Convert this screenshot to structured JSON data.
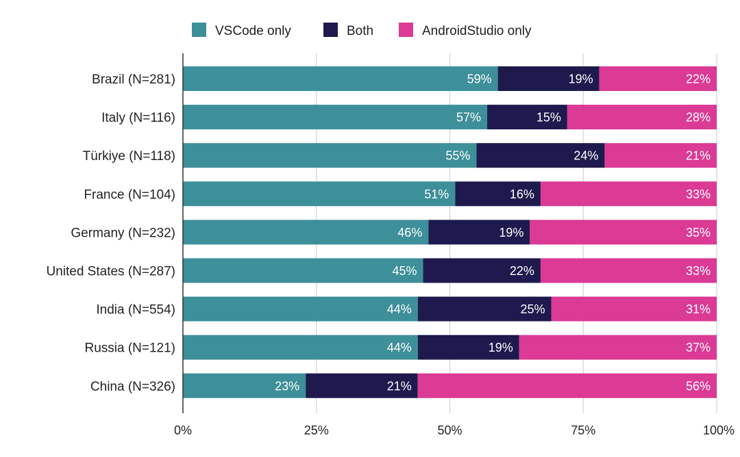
{
  "chart_data": {
    "type": "bar",
    "orientation": "horizontal",
    "stacked": true,
    "normalized": true,
    "title": "",
    "xlabel": "",
    "ylabel": "",
    "xlim": [
      0,
      100
    ],
    "grid": true,
    "legend_position": "top",
    "categories": [
      "Brazil (N=281)",
      "Italy (N=116)",
      "Türkiye (N=118)",
      "France (N=104)",
      "Germany (N=232)",
      "United States (N=287)",
      "India (N=554)",
      "Russia (N=121)",
      "China (N=326)"
    ],
    "series": [
      {
        "name": "VSCode only",
        "color": "#3d8f99",
        "values": [
          59,
          57,
          55,
          51,
          46,
          45,
          44,
          44,
          23
        ]
      },
      {
        "name": "Both",
        "color": "#1e1a4d",
        "values": [
          19,
          15,
          24,
          16,
          19,
          22,
          25,
          19,
          21
        ]
      },
      {
        "name": "AndroidStudio only",
        "color": "#db3a95",
        "values": [
          22,
          28,
          21,
          33,
          35,
          33,
          31,
          37,
          56
        ]
      }
    ],
    "tick_labels": [
      "0%",
      "25%",
      "50%",
      "75%",
      "100%"
    ],
    "tick_values": [
      0,
      25,
      50,
      75,
      100
    ],
    "value_suffix": "%"
  }
}
